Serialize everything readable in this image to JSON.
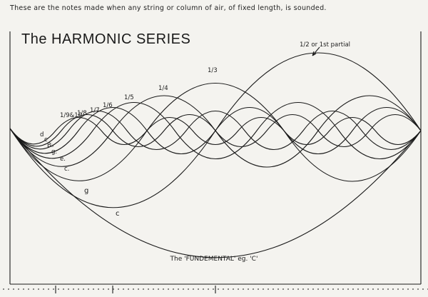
{
  "caption": "These are the notes made when any string or column of air, of fixed length, is sounded.",
  "title": "The HARMONIC SERIES",
  "first_partial_label": "1/2 or 1st partial",
  "fundamental_label": "The 'FUNDEMENTAL' eg. 'C'",
  "partial_labels": [
    "1/3",
    "1/4",
    "1/5",
    "1/6",
    "1/7",
    "1/8",
    "1/9&10"
  ],
  "note_labels": [
    "c",
    "g",
    "c.",
    "e.",
    "g.",
    "B♭",
    "c",
    "d"
  ]
}
